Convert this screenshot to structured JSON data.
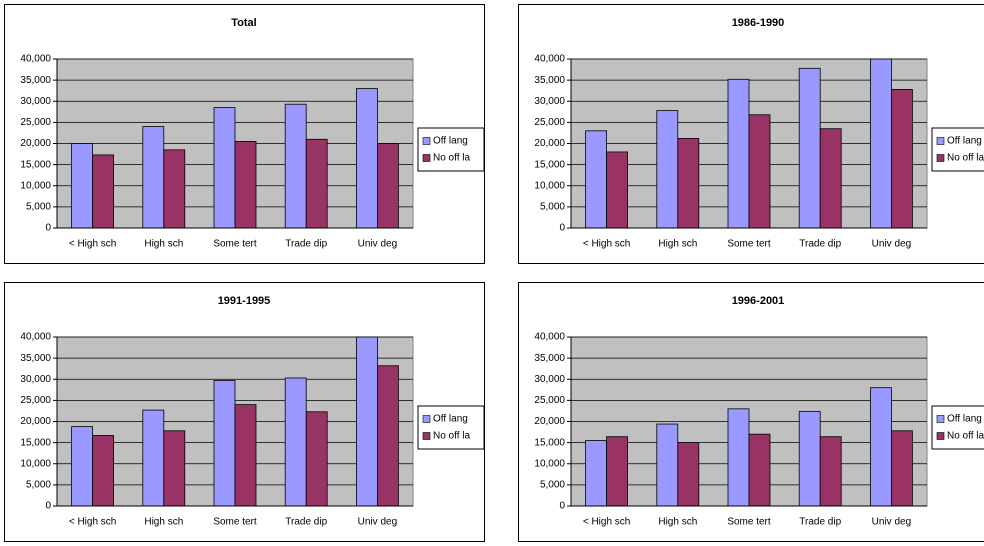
{
  "chart_data": [
    {
      "type": "bar",
      "title": "Total",
      "categories": [
        "< High sch",
        "High sch",
        "Some tert",
        "Trade dip",
        "Univ deg"
      ],
      "series": [
        {
          "name": "Off lang",
          "color": "#9999ff",
          "values": [
            20000,
            24000,
            28500,
            29300,
            33000
          ]
        },
        {
          "name": "No off la",
          "color": "#993366",
          "values": [
            17300,
            18500,
            20500,
            21000,
            20000
          ]
        }
      ],
      "ylim": [
        0,
        40000
      ],
      "yticks": [
        0,
        {
          "value": 5000,
          "label": "5,000"
        },
        {
          "value": 10000,
          "label": "10,000"
        },
        {
          "value": 15000,
          "label": "15,000"
        },
        {
          "value": 20000,
          "label": "20,000"
        },
        {
          "value": 25000,
          "label": "25,000"
        },
        {
          "value": 30000,
          "label": "30,000"
        },
        {
          "value": 35000,
          "label": "35,000"
        },
        {
          "value": 40000,
          "label": "40,000"
        }
      ],
      "grid": true,
      "legend": "right"
    },
    {
      "type": "bar",
      "title": "1986-1990",
      "categories": [
        "< High sch",
        "High sch",
        "Some tert",
        "Trade dip",
        "Univ deg"
      ],
      "series": [
        {
          "name": "Off lang",
          "color": "#9999ff",
          "values": [
            23000,
            27800,
            35200,
            37800,
            40000
          ]
        },
        {
          "name": "No off la",
          "color": "#993366",
          "values": [
            18000,
            21200,
            26800,
            23500,
            32800
          ]
        }
      ],
      "ylim": [
        0,
        40000
      ],
      "yticks": [
        0,
        {
          "value": 5000,
          "label": "5,000"
        },
        {
          "value": 10000,
          "label": "10,000"
        },
        {
          "value": 15000,
          "label": "15,000"
        },
        {
          "value": 20000,
          "label": "20,000"
        },
        {
          "value": 25000,
          "label": "25,000"
        },
        {
          "value": 30000,
          "label": "30,000"
        },
        {
          "value": 35000,
          "label": "35,000"
        },
        {
          "value": 40000,
          "label": "40,000"
        }
      ],
      "grid": true,
      "legend": "right"
    },
    {
      "type": "bar",
      "title": "1991-1995",
      "categories": [
        "< High sch",
        "High sch",
        "Some tert",
        "Trade dip",
        "Univ deg"
      ],
      "series": [
        {
          "name": "Off lang",
          "color": "#9999ff",
          "values": [
            18800,
            22700,
            29700,
            30300,
            40000
          ]
        },
        {
          "name": "No off la",
          "color": "#993366",
          "values": [
            16700,
            17800,
            24000,
            22300,
            33200
          ]
        }
      ],
      "ylim": [
        0,
        40000
      ],
      "yticks": [
        0,
        {
          "value": 5000,
          "label": "5,000"
        },
        {
          "value": 10000,
          "label": "10,000"
        },
        {
          "value": 15000,
          "label": "15,000"
        },
        {
          "value": 20000,
          "label": "20,000"
        },
        {
          "value": 25000,
          "label": "25,000"
        },
        {
          "value": 30000,
          "label": "30,000"
        },
        {
          "value": 35000,
          "label": "35,000"
        },
        {
          "value": 40000,
          "label": "40,000"
        }
      ],
      "grid": true,
      "legend": "right"
    },
    {
      "type": "bar",
      "title": "1996-2001",
      "categories": [
        "< High sch",
        "High sch",
        "Some tert",
        "Trade dip",
        "Univ deg"
      ],
      "series": [
        {
          "name": "Off lang",
          "color": "#9999ff",
          "values": [
            15500,
            19400,
            23000,
            22400,
            28000
          ]
        },
        {
          "name": "No off la",
          "color": "#993366",
          "values": [
            16400,
            15000,
            17000,
            16400,
            17800
          ]
        }
      ],
      "ylim": [
        0,
        40000
      ],
      "yticks": [
        0,
        {
          "value": 5000,
          "label": "5,000"
        },
        {
          "value": 10000,
          "label": "10,000"
        },
        {
          "value": 15000,
          "label": "15,000"
        },
        {
          "value": 20000,
          "label": "20,000"
        },
        {
          "value": 25000,
          "label": "25,000"
        },
        {
          "value": 30000,
          "label": "30,000"
        },
        {
          "value": 35000,
          "label": "35,000"
        },
        {
          "value": 40000,
          "label": "40,000"
        }
      ],
      "grid": true,
      "legend": "right"
    }
  ]
}
